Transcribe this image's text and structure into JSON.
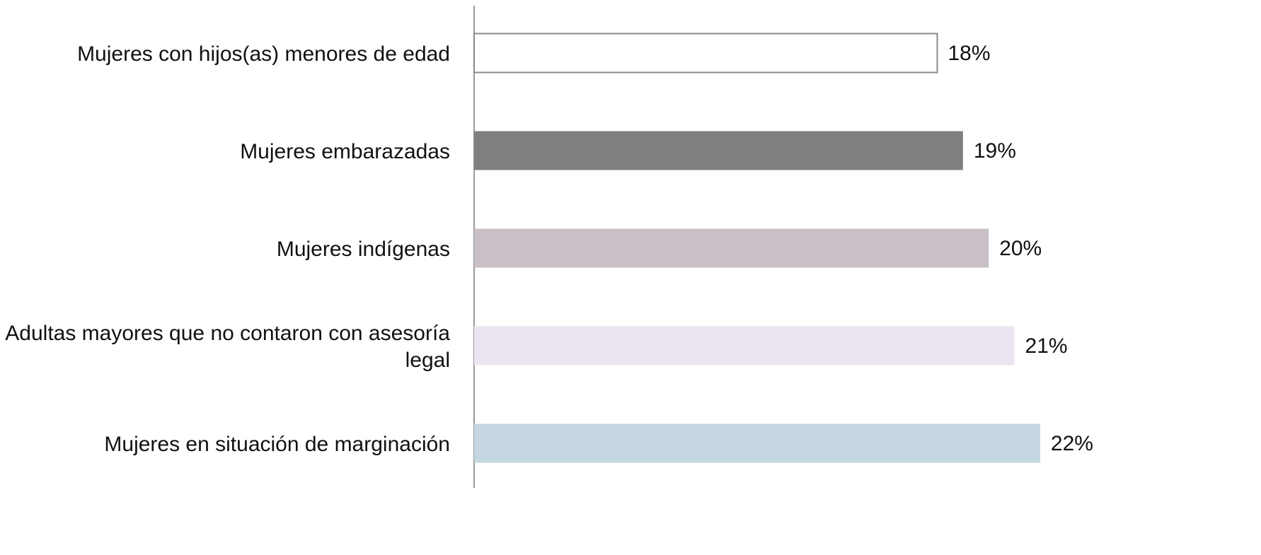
{
  "chart_data": {
    "type": "barh",
    "categories": [
      "Mujeres con hijos(as) menores de edad",
      "Mujeres embarazadas",
      "Mujeres indígenas",
      "Adultas mayores que no contaron con asesoría legal",
      "Mujeres en situación de marginación"
    ],
    "values": [
      18,
      19,
      20,
      21,
      22
    ],
    "value_labels": [
      "18%",
      "19%",
      "20%",
      "21%",
      "22%"
    ],
    "colors": [
      "#ffffff",
      "#808080",
      "#c8c0c6",
      "#ede4f1",
      "#c4d6e0"
    ],
    "xlim": [
      0,
      30
    ]
  }
}
